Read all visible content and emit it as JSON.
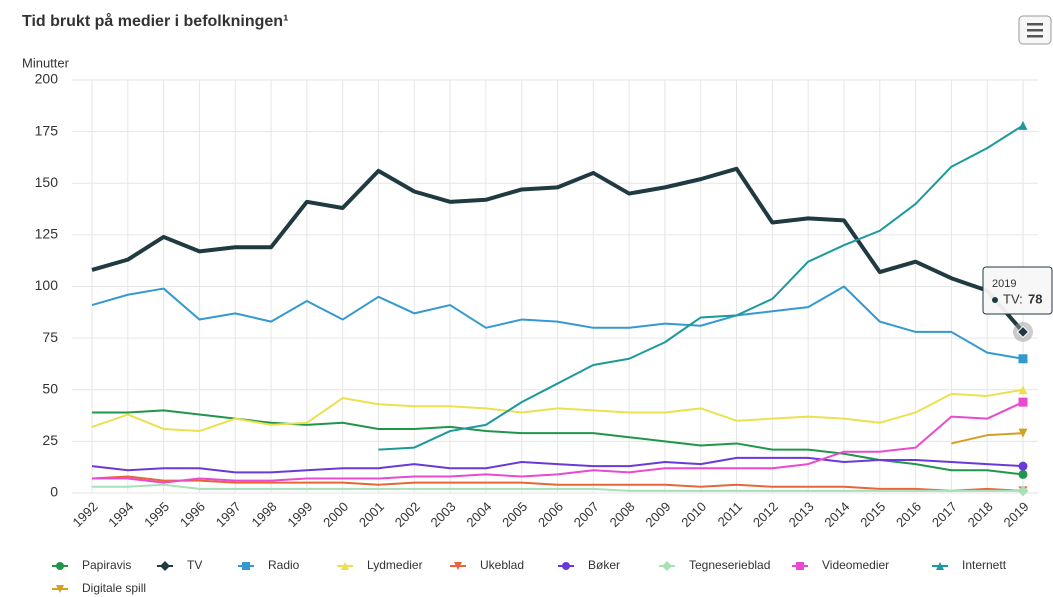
{
  "chart_data": {
    "type": "line",
    "title": "Tid brukt på medier i befolkningen¹",
    "y_label": "Minutter",
    "categories": [
      "1992",
      "1994",
      "1995",
      "1996",
      "1997",
      "1998",
      "1999",
      "2000",
      "2001",
      "2002",
      "2003",
      "2004",
      "2005",
      "2006",
      "2007",
      "2008",
      "2009",
      "2010",
      "2011",
      "2012",
      "2013",
      "2014",
      "2015",
      "2016",
      "2017",
      "2018",
      "2019"
    ],
    "ylim": [
      0,
      200
    ],
    "yticks": [
      0,
      25,
      50,
      75,
      100,
      125,
      150,
      175,
      200
    ],
    "grid": true,
    "series": [
      {
        "name": "Papiravis",
        "color": "#21964a",
        "marker": "circle",
        "values": [
          39,
          39,
          40,
          38,
          36,
          34,
          33,
          34,
          31,
          31,
          32,
          30,
          29,
          29,
          29,
          27,
          25,
          23,
          24,
          21,
          21,
          19,
          16,
          14,
          11,
          11,
          9
        ]
      },
      {
        "name": "TV",
        "color": "#1f3a40",
        "marker": "diamond",
        "width": 4,
        "values": [
          108,
          113,
          124,
          117,
          119,
          119,
          141,
          138,
          156,
          146,
          141,
          142,
          147,
          148,
          155,
          145,
          148,
          152,
          157,
          131,
          133,
          132,
          107,
          112,
          104,
          98,
          78
        ]
      },
      {
        "name": "Radio",
        "color": "#3399d0",
        "marker": "square",
        "values": [
          91,
          96,
          99,
          84,
          87,
          83,
          93,
          84,
          95,
          87,
          91,
          80,
          84,
          83,
          80,
          80,
          82,
          81,
          86,
          88,
          90,
          100,
          83,
          78,
          78,
          68,
          65
        ]
      },
      {
        "name": "Lydmedier",
        "color": "#ebe14f",
        "marker": "triangle",
        "values": [
          32,
          38,
          31,
          30,
          36,
          33,
          34,
          46,
          43,
          42,
          42,
          41,
          39,
          41,
          40,
          39,
          39,
          41,
          35,
          36,
          37,
          36,
          34,
          39,
          48,
          47,
          50
        ]
      },
      {
        "name": "Ukeblad",
        "color": "#e8653a",
        "marker": "triangle-down",
        "values": [
          7,
          8,
          6,
          6,
          5,
          5,
          5,
          5,
          4,
          5,
          5,
          5,
          5,
          4,
          4,
          4,
          4,
          3,
          4,
          3,
          3,
          3,
          2,
          2,
          1,
          2,
          1
        ]
      },
      {
        "name": "Bøker",
        "color": "#6a3ad8",
        "marker": "circle",
        "values": [
          13,
          11,
          12,
          12,
          10,
          10,
          11,
          12,
          12,
          14,
          12,
          12,
          15,
          14,
          13,
          13,
          15,
          14,
          17,
          17,
          17,
          15,
          16,
          16,
          15,
          14,
          13
        ]
      },
      {
        "name": "Tegneserieblad",
        "color": "#a8e0b8",
        "marker": "diamond",
        "values": [
          3,
          3,
          4,
          2,
          2,
          2,
          2,
          2,
          2,
          2,
          2,
          2,
          2,
          2,
          2,
          1,
          1,
          1,
          1,
          1,
          1,
          1,
          1,
          1,
          1,
          1,
          1
        ]
      },
      {
        "name": "Videomedier",
        "color": "#e84ad0",
        "marker": "square",
        "values": [
          7,
          7,
          5,
          7,
          6,
          6,
          7,
          7,
          7,
          8,
          8,
          9,
          8,
          9,
          11,
          10,
          12,
          12,
          12,
          12,
          14,
          20,
          20,
          22,
          37,
          36,
          44
        ]
      },
      {
        "name": "Internett",
        "color": "#1a9a9c",
        "marker": "triangle",
        "values": [
          null,
          null,
          null,
          null,
          null,
          null,
          null,
          null,
          21,
          22,
          30,
          33,
          44,
          53,
          62,
          65,
          73,
          85,
          86,
          94,
          112,
          120,
          127,
          140,
          158,
          167,
          178
        ]
      },
      {
        "name": "Digitale spill",
        "color": "#d4a020",
        "marker": "triangle-down",
        "values": [
          null,
          null,
          null,
          null,
          null,
          null,
          null,
          null,
          null,
          null,
          null,
          null,
          null,
          null,
          null,
          null,
          null,
          null,
          null,
          null,
          null,
          null,
          null,
          null,
          24,
          28,
          29
        ]
      }
    ],
    "tooltip": {
      "header": "2019",
      "series": "TV:",
      "value": 78
    }
  }
}
